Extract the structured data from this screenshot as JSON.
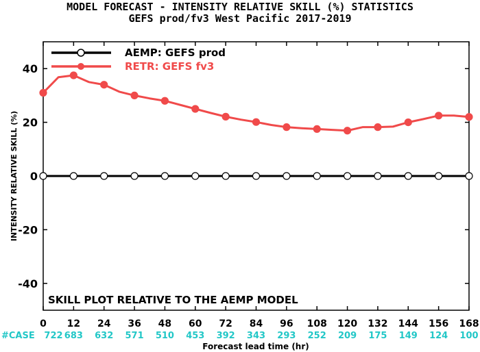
{
  "title_line1": "MODEL FORECAST - INTENSITY RELATIVE SKILL (%) STATISTICS",
  "title_line2": "GEFS prod/fv3 West Pacific 2017-2019",
  "annotation": "SKILL PLOT RELATIVE TO THE AEMP MODEL",
  "case_label": "#CASE",
  "colors": {
    "retr": "#f04a4a",
    "aemp": "#000000",
    "case_text": "#22c7c7"
  },
  "chart_data": {
    "type": "line",
    "xlabel": "Forecast lead time (hr)",
    "ylabel": "INTENSITY RELATIVE SKILL (%)",
    "xlim": [
      0,
      168
    ],
    "ylim": [
      -50,
      50
    ],
    "xticks": [
      0,
      12,
      24,
      36,
      48,
      60,
      72,
      84,
      96,
      108,
      120,
      132,
      144,
      156,
      168
    ],
    "yticks": [
      -40,
      -20,
      0,
      20,
      40
    ],
    "grid": false,
    "legend_position": "top-left",
    "series": [
      {
        "name": "AEMP: GEFS prod",
        "color": "#000000",
        "marker": "open-circle",
        "x": [
          0,
          12,
          24,
          36,
          48,
          60,
          72,
          84,
          96,
          108,
          120,
          132,
          144,
          156,
          168
        ],
        "y": [
          0,
          0,
          0,
          0,
          0,
          0,
          0,
          0,
          0,
          0,
          0,
          0,
          0,
          0,
          0
        ]
      },
      {
        "name": "RETR: GEFS fv3",
        "color": "#f04a4a",
        "marker": "filled-circle",
        "x": [
          0,
          6,
          12,
          18,
          24,
          30,
          36,
          42,
          48,
          54,
          60,
          66,
          72,
          78,
          84,
          90,
          96,
          102,
          108,
          114,
          120,
          126,
          132,
          138,
          144,
          150,
          156,
          162,
          168
        ],
        "y": [
          31,
          36.8,
          37.5,
          35,
          34,
          31.4,
          30,
          28.9,
          28,
          26.5,
          25,
          23.5,
          22.1,
          21,
          20.1,
          19,
          18.2,
          17.8,
          17.5,
          17.2,
          16.9,
          18.2,
          18.2,
          18.4,
          20,
          21.2,
          22.5,
          22.5,
          22
        ]
      }
    ],
    "marker_x": [
      0,
      12,
      24,
      36,
      48,
      60,
      72,
      84,
      96,
      108,
      120,
      132,
      144,
      156,
      168
    ],
    "case_counts": [
      722,
      683,
      632,
      571,
      510,
      453,
      392,
      343,
      293,
      252,
      209,
      175,
      149,
      124,
      100
    ]
  }
}
